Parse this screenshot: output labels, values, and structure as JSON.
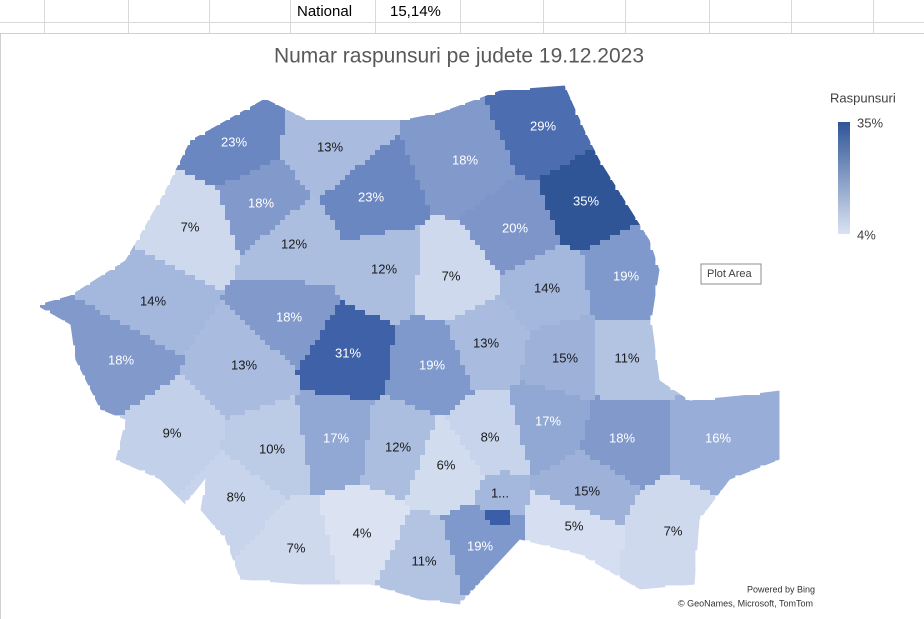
{
  "sheet": {
    "cells": [
      "National",
      "15,14%"
    ]
  },
  "chart_data": {
    "type": "map",
    "title": "Numar raspunsuri pe judete 19.12.2023",
    "legend": {
      "title": "Raspunsuri",
      "max_label": "35%",
      "min_label": "4%",
      "colors": [
        "#2f5597",
        "#dbe3f2"
      ]
    },
    "regions": [
      {
        "label": "23%",
        "color": "#6a87c2"
      },
      {
        "label": "13%",
        "color": "#a9bbdf"
      },
      {
        "label": "18%",
        "color": "#8299cc"
      },
      {
        "label": "29%",
        "color": "#4c6db0"
      },
      {
        "label": "35%",
        "color": "#2f5597"
      },
      {
        "label": "7%",
        "color": "#cfd9ee"
      },
      {
        "label": "18%",
        "color": "#8299cc"
      },
      {
        "label": "23%",
        "color": "#6a87c2"
      },
      {
        "label": "12%",
        "color": "#acbedf"
      },
      {
        "label": "20%",
        "color": "#7d95c9"
      },
      {
        "label": "12%",
        "color": "#acbedf"
      },
      {
        "label": "7%",
        "color": "#cfd9ee"
      },
      {
        "label": "14%",
        "color": "#a4b7dc"
      },
      {
        "label": "19%",
        "color": "#8099cc"
      },
      {
        "label": "14%",
        "color": "#a4b7dc"
      },
      {
        "label": "18%",
        "color": "#8299cc"
      },
      {
        "label": "31%",
        "color": "#3e61a8"
      },
      {
        "label": "13%",
        "color": "#a9bbdf"
      },
      {
        "label": "15%",
        "color": "#9db1d9"
      },
      {
        "label": "11%",
        "color": "#b3c3e2"
      },
      {
        "label": "18%",
        "color": "#8299cc"
      },
      {
        "label": "13%",
        "color": "#a9bbdf"
      },
      {
        "label": "19%",
        "color": "#8099cc"
      },
      {
        "label": "9%",
        "color": "#c2d0ea"
      },
      {
        "label": "10%",
        "color": "#bccbe6"
      },
      {
        "label": "17%",
        "color": "#91a8d4"
      },
      {
        "label": "12%",
        "color": "#acbedf"
      },
      {
        "label": "8%",
        "color": "#c7d4ec"
      },
      {
        "label": "17%",
        "color": "#91a8d4"
      },
      {
        "label": "18%",
        "color": "#8299cc"
      },
      {
        "label": "16%",
        "color": "#98aed8"
      },
      {
        "label": "6%",
        "color": "#d2dcef"
      },
      {
        "label": "8%",
        "color": "#c7d4ec"
      },
      {
        "label": "1...",
        "color": "#a4b7dc"
      },
      {
        "label": "15%",
        "color": "#9db1d9"
      },
      {
        "label": "4%",
        "color": "#dbe3f2"
      },
      {
        "label": "7%",
        "color": "#cfd9ee"
      },
      {
        "label": "5%",
        "color": "#d5dff1"
      },
      {
        "label": "7%",
        "color": "#cfd9ee"
      },
      {
        "label": "11%",
        "color": "#b3c3e2"
      },
      {
        "label": "19%",
        "color": "#8099cc"
      },
      {
        "color": "#3a5ea8"
      }
    ],
    "tooltip": "Plot Area",
    "credits": [
      "Powered by Bing",
      "© GeoNames, Microsoft, TomTom"
    ]
  }
}
